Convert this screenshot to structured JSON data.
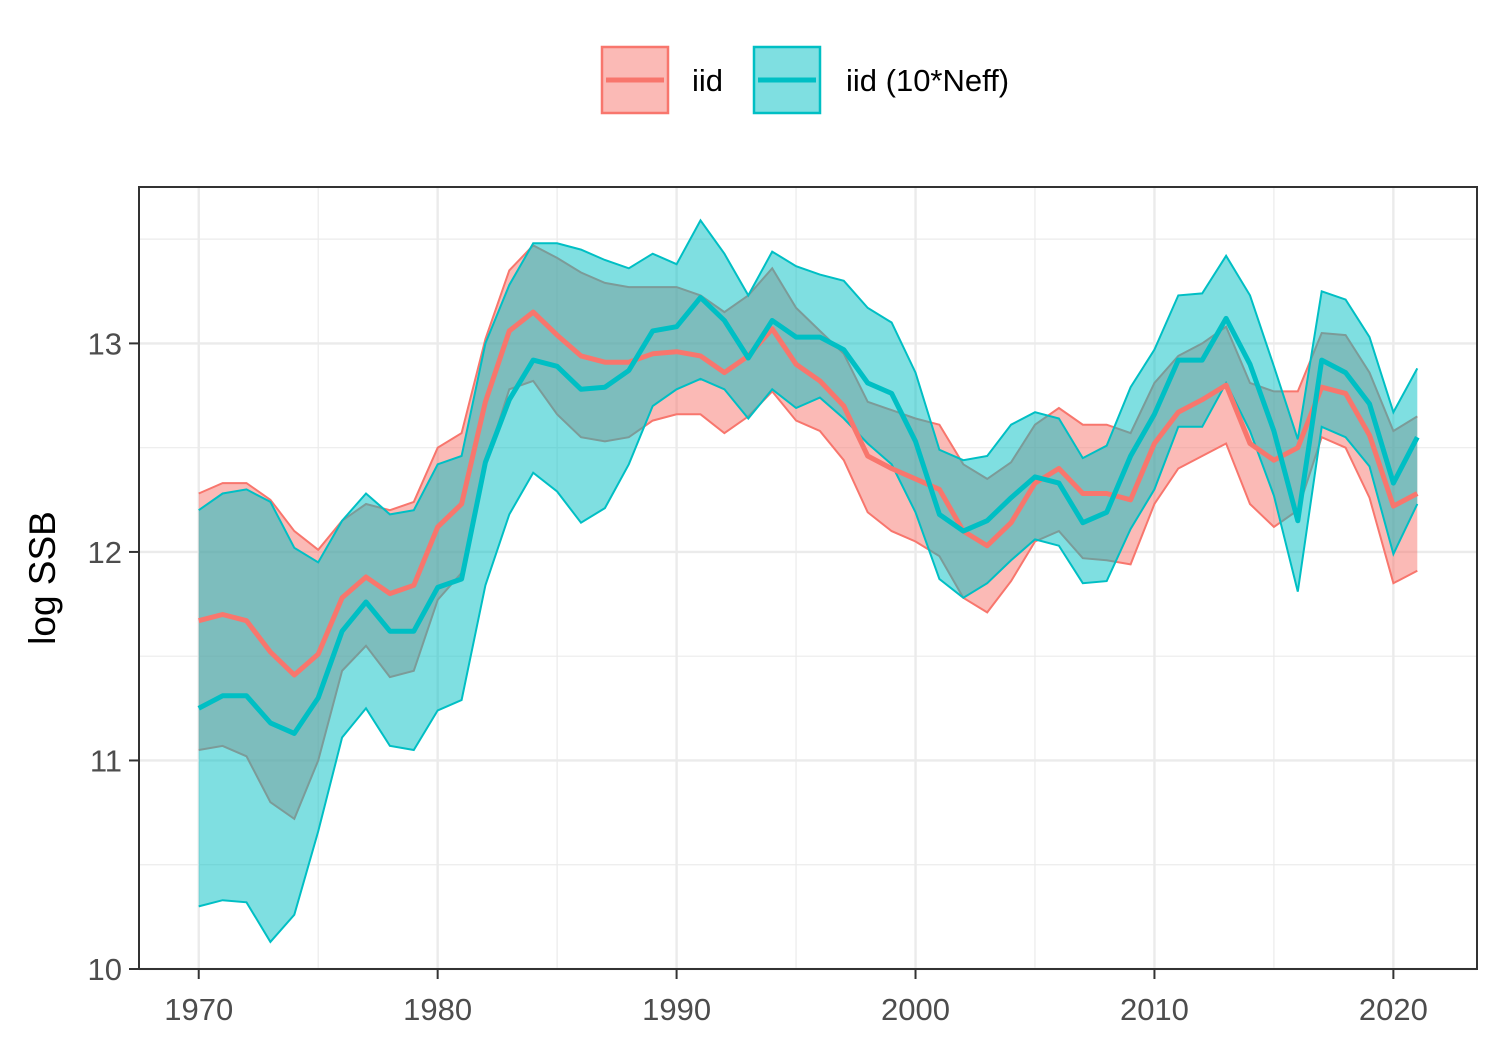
{
  "chart_data": {
    "type": "area",
    "title": "",
    "xlabel": "",
    "ylabel": "log SSB",
    "xlim": [
      1967.5,
      2023.5
    ],
    "ylim": [
      10.0,
      13.75
    ],
    "x_ticks": [
      1970,
      1980,
      1990,
      2000,
      2010,
      2020
    ],
    "x_tick_labels": [
      "1970",
      "1980",
      "1990",
      "2000",
      "2010",
      "2020"
    ],
    "y_ticks": [
      10,
      11,
      12,
      13
    ],
    "y_tick_labels": [
      "10",
      "11",
      "12",
      "13"
    ],
    "grid": true,
    "legend_position": "top",
    "x": [
      1970,
      1971,
      1972,
      1973,
      1974,
      1975,
      1976,
      1977,
      1978,
      1979,
      1980,
      1981,
      1982,
      1983,
      1984,
      1985,
      1986,
      1987,
      1988,
      1989,
      1990,
      1991,
      1992,
      1993,
      1994,
      1995,
      1996,
      1997,
      1998,
      1999,
      2000,
      2001,
      2002,
      2003,
      2004,
      2005,
      2006,
      2007,
      2008,
      2009,
      2010,
      2011,
      2012,
      2013,
      2014,
      2015,
      2016,
      2017,
      2018,
      2019,
      2020,
      2021
    ],
    "series": [
      {
        "name": "iid",
        "color": "#F8766D",
        "fill": "#F8766D",
        "values": [
          11.67,
          11.7,
          11.67,
          11.52,
          11.41,
          11.51,
          11.78,
          11.88,
          11.8,
          11.84,
          12.12,
          12.23,
          12.72,
          13.06,
          13.15,
          13.04,
          12.94,
          12.91,
          12.91,
          12.95,
          12.96,
          12.94,
          12.86,
          12.94,
          13.07,
          12.9,
          12.82,
          12.7,
          12.46,
          12.4,
          12.35,
          12.3,
          12.1,
          12.03,
          12.14,
          12.33,
          12.4,
          12.28,
          12.28,
          12.25,
          12.52,
          12.67,
          12.73,
          12.8,
          12.52,
          12.44,
          12.5,
          12.79,
          12.76,
          12.56,
          12.22,
          12.28
        ],
        "lower": [
          11.05,
          11.07,
          11.02,
          10.8,
          10.72,
          11.0,
          11.43,
          11.55,
          11.4,
          11.43,
          11.77,
          11.9,
          12.42,
          12.78,
          12.82,
          12.66,
          12.55,
          12.53,
          12.55,
          12.63,
          12.66,
          12.66,
          12.57,
          12.65,
          12.77,
          12.63,
          12.58,
          12.44,
          12.19,
          12.1,
          12.05,
          11.98,
          11.78,
          11.71,
          11.86,
          12.05,
          12.1,
          11.97,
          11.96,
          11.94,
          12.23,
          12.4,
          12.46,
          12.52,
          12.23,
          12.12,
          12.2,
          12.55,
          12.5,
          12.26,
          11.85,
          11.91
        ],
        "upper": [
          12.28,
          12.33,
          12.33,
          12.25,
          12.1,
          12.01,
          12.15,
          12.23,
          12.2,
          12.24,
          12.5,
          12.57,
          13.02,
          13.35,
          13.47,
          13.41,
          13.34,
          13.29,
          13.27,
          13.27,
          13.27,
          13.23,
          13.15,
          13.23,
          13.36,
          13.17,
          13.06,
          12.95,
          12.72,
          12.68,
          12.64,
          12.61,
          12.42,
          12.35,
          12.43,
          12.61,
          12.69,
          12.61,
          12.61,
          12.57,
          12.81,
          12.94,
          13.0,
          13.08,
          12.81,
          12.77,
          12.77,
          13.05,
          13.04,
          12.86,
          12.58,
          12.65
        ]
      },
      {
        "name": "iid (10*Neff)",
        "color": "#00BFC4",
        "fill": "#00BFC4",
        "values": [
          11.25,
          11.31,
          11.31,
          11.18,
          11.13,
          11.3,
          11.62,
          11.76,
          11.62,
          11.62,
          11.83,
          11.87,
          12.43,
          12.73,
          12.92,
          12.89,
          12.78,
          12.79,
          12.87,
          13.06,
          13.08,
          13.22,
          13.11,
          12.93,
          13.11,
          13.03,
          13.03,
          12.97,
          12.81,
          12.76,
          12.53,
          12.18,
          12.1,
          12.15,
          12.26,
          12.36,
          12.33,
          12.14,
          12.19,
          12.46,
          12.66,
          12.92,
          12.92,
          13.12,
          12.9,
          12.58,
          12.15,
          12.92,
          12.86,
          12.71,
          12.33,
          12.55
        ],
        "lower": [
          10.3,
          10.33,
          10.32,
          10.13,
          10.26,
          10.66,
          11.11,
          11.25,
          11.07,
          11.05,
          11.24,
          11.29,
          11.84,
          12.18,
          12.38,
          12.29,
          12.14,
          12.21,
          12.42,
          12.7,
          12.78,
          12.83,
          12.78,
          12.64,
          12.78,
          12.69,
          12.74,
          12.64,
          12.52,
          12.42,
          12.19,
          11.87,
          11.78,
          11.85,
          11.96,
          12.06,
          12.03,
          11.85,
          11.86,
          12.11,
          12.3,
          12.6,
          12.6,
          12.81,
          12.58,
          12.27,
          11.81,
          12.6,
          12.55,
          12.41,
          11.99,
          12.23
        ],
        "upper": [
          12.2,
          12.28,
          12.3,
          12.24,
          12.02,
          11.95,
          12.15,
          12.28,
          12.18,
          12.2,
          12.42,
          12.46,
          13.0,
          13.28,
          13.48,
          13.48,
          13.45,
          13.4,
          13.36,
          13.43,
          13.38,
          13.59,
          13.43,
          13.23,
          13.44,
          13.37,
          13.33,
          13.3,
          13.17,
          13.1,
          12.86,
          12.49,
          12.44,
          12.46,
          12.61,
          12.67,
          12.64,
          12.45,
          12.51,
          12.79,
          12.97,
          13.23,
          13.24,
          13.42,
          13.23,
          12.89,
          12.54,
          13.25,
          13.21,
          13.03,
          12.67,
          12.88
        ]
      }
    ]
  }
}
